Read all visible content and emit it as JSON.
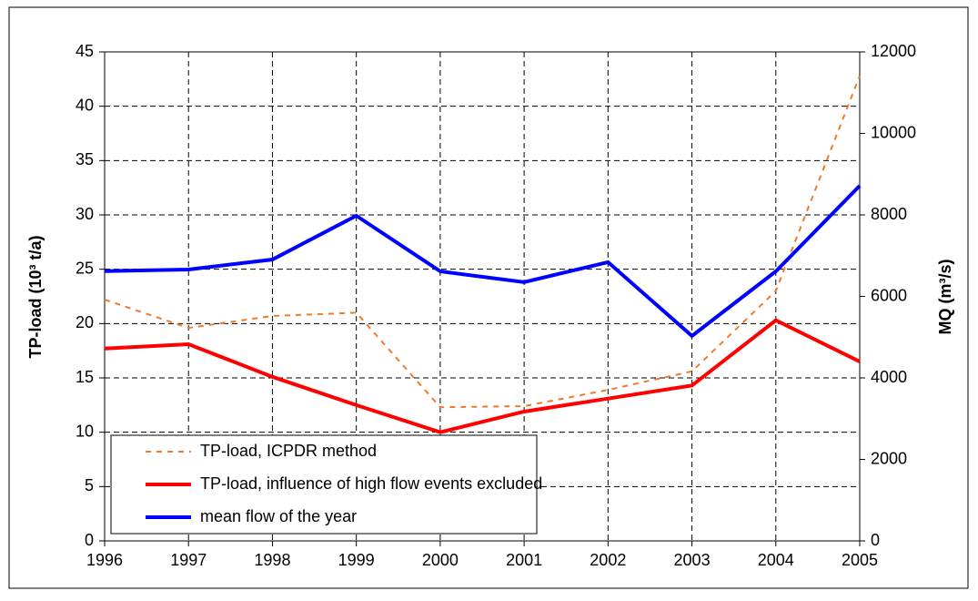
{
  "chart_data": {
    "type": "line",
    "x": [
      1996,
      1997,
      1998,
      1999,
      2000,
      2001,
      2002,
      2003,
      2004,
      2005
    ],
    "xlim": [
      1996,
      2005
    ],
    "xticks": [
      1996,
      1997,
      1998,
      1999,
      2000,
      2001,
      2002,
      2003,
      2004,
      2005
    ],
    "ylabel": "TP-load (10³ t/a)",
    "y2label": "MQ (m³/s)",
    "ylim": [
      0,
      45
    ],
    "yticks": [
      0,
      5,
      10,
      15,
      20,
      25,
      30,
      35,
      40,
      45
    ],
    "y2lim": [
      0,
      12000
    ],
    "y2ticks": [
      0,
      2000,
      4000,
      6000,
      8000,
      10000,
      12000
    ],
    "grid": true,
    "legend": "lower left",
    "series": [
      {
        "name": "TP-load, ICPDR method",
        "color": "#f07a2a",
        "dashed": true,
        "values": [
          22.2,
          19.6,
          20.7,
          21.0,
          12.3,
          12.4,
          13.9,
          15.6,
          23.0,
          42.8
        ]
      },
      {
        "name": "TP-load, influence of high flow events excluded",
        "color": "#ff0000",
        "values": [
          17.7,
          18.1,
          15.1,
          12.5,
          10.0,
          11.9,
          13.1,
          14.3,
          20.3,
          16.5
        ]
      },
      {
        "name": "mean flow of the year",
        "color": "#0000ff",
        "axis": "y2",
        "values": [
          6620,
          6660,
          6905,
          7980,
          6615,
          6350,
          6840,
          5030,
          6615,
          8715
        ]
      }
    ]
  }
}
